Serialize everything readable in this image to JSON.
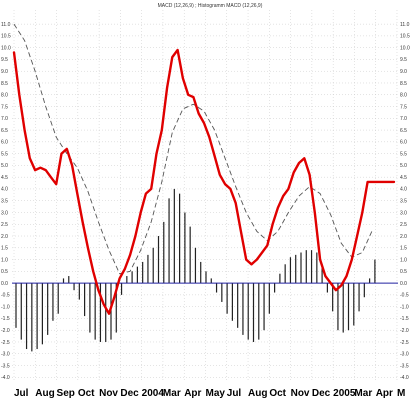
{
  "chart_data": {
    "type": "line",
    "title": "MACD (12,26,9) ; Histogramm MACD (12,26,9)",
    "ylim": [
      -4.2,
      11.6
    ],
    "yticks": [
      "-4.0",
      "-3.5",
      "-3.0",
      "-2.5",
      "-2.0",
      "-1.5",
      "-1.0",
      "-0.5",
      "0.0",
      "0.5",
      "1.0",
      "1.5",
      "2.0",
      "2.5",
      "3.0",
      "3.5",
      "4.0",
      "4.5",
      "5.0",
      "5.5",
      "6.0",
      "6.5",
      "7.0",
      "7.5",
      "8.0",
      "8.5",
      "9.0",
      "9.5",
      "10.0",
      "10.5",
      "11.0"
    ],
    "xticks": [
      "Jul",
      "Aug",
      "Sep",
      "Oct",
      "Nov",
      "Dec",
      "2004",
      "Mar",
      "Apr",
      "May",
      "Jul",
      "Aug",
      "Oct",
      "Nov",
      "Dec",
      "2005",
      "Mar",
      "Apr",
      "M"
    ],
    "grid": true,
    "colors": {
      "macd": "#e00000",
      "signal": "#555555",
      "histogram": "#222222",
      "zero_line": "#2020a0",
      "grid": "#c8c8c8"
    },
    "series": [
      {
        "style": "solid-red",
        "x": [
          0,
          5,
          10,
          15,
          20,
          25,
          30,
          35,
          40,
          45,
          50,
          55,
          60,
          65,
          70,
          75,
          80,
          85,
          90,
          95,
          100,
          105,
          110,
          115,
          120,
          125,
          130,
          135,
          140,
          145,
          150,
          155,
          160,
          165,
          170,
          175,
          180,
          185,
          190,
          195,
          200,
          205,
          210,
          215,
          220,
          225,
          230,
          235,
          240,
          245,
          250,
          255,
          260,
          265,
          270,
          275,
          280,
          285,
          290,
          295,
          300,
          305,
          310,
          315,
          320,
          325,
          330,
          335,
          340,
          345,
          350,
          355,
          360
        ],
        "values": [
          9.8,
          8.0,
          6.5,
          5.3,
          4.8,
          4.9,
          4.8,
          4.5,
          4.2,
          5.5,
          5.7,
          5.0,
          3.8,
          2.6,
          1.5,
          0.5,
          -0.3,
          -0.9,
          -1.3,
          -0.6,
          0.2,
          0.6,
          1.2,
          2.0,
          3.0,
          3.8,
          4.0,
          5.5,
          6.5,
          8.3,
          9.6,
          9.9,
          8.7,
          8.0,
          7.9,
          7.2,
          6.8,
          6.2,
          5.4,
          4.6,
          4.2,
          4.0,
          3.4,
          2.2,
          1.0,
          0.8,
          1.0,
          1.3,
          1.6,
          2.5,
          3.2,
          3.7,
          4.0,
          4.7,
          5.1,
          5.3,
          4.6,
          3.0,
          1.0,
          0.3,
          0.0,
          -0.3,
          -0.1,
          0.3,
          1.0,
          2.0,
          3.0,
          4.3,
          4.3,
          4.3,
          4.3,
          4.3,
          4.3
        ]
      },
      {
        "style": "dashed-black",
        "x": [
          0,
          10,
          20,
          30,
          40,
          50,
          60,
          70,
          80,
          90,
          100,
          110,
          120,
          130,
          140,
          150,
          160,
          170,
          180,
          190,
          200,
          210,
          220,
          230,
          240,
          250,
          260,
          270,
          280,
          290,
          300,
          310,
          320,
          330,
          340
        ],
        "values": [
          11.0,
          10.3,
          9.0,
          7.5,
          6.2,
          5.5,
          4.9,
          3.9,
          2.6,
          1.4,
          0.4,
          0.5,
          1.4,
          2.6,
          4.3,
          6.4,
          7.4,
          7.6,
          7.3,
          6.5,
          5.3,
          4.1,
          3.0,
          2.2,
          1.8,
          2.2,
          3.0,
          3.7,
          4.1,
          3.8,
          2.9,
          1.7,
          1.1,
          1.3,
          2.3
        ]
      }
    ],
    "histogram": {
      "x": [
        0,
        5,
        10,
        15,
        20,
        25,
        30,
        35,
        40,
        45,
        50,
        55,
        60,
        65,
        70,
        75,
        80,
        85,
        90,
        95,
        100,
        105,
        110,
        115,
        120,
        125,
        130,
        135,
        140,
        145,
        150,
        155,
        160,
        165,
        170,
        175,
        180,
        185,
        190,
        195,
        200,
        205,
        210,
        215,
        220,
        225,
        230,
        235,
        240,
        245,
        250,
        255,
        260,
        265,
        270,
        275,
        280,
        285,
        290,
        295,
        300,
        305,
        310,
        315,
        320,
        325,
        330,
        335,
        340
      ],
      "values": [
        -1.9,
        -2.4,
        -2.8,
        -2.9,
        -2.8,
        -2.6,
        -2.2,
        -1.6,
        -1.3,
        0.2,
        0.3,
        -0.3,
        -0.7,
        -1.4,
        -2.1,
        -2.4,
        -2.5,
        -2.5,
        -2.4,
        -2.1,
        -0.5,
        0.3,
        0.5,
        0.7,
        0.9,
        1.2,
        1.5,
        2.0,
        2.6,
        3.6,
        4.0,
        3.8,
        3.0,
        2.4,
        1.5,
        0.9,
        0.5,
        0.2,
        -0.4,
        -0.8,
        -1.3,
        -1.6,
        -1.9,
        -2.2,
        -2.4,
        -2.5,
        -2.4,
        -2.0,
        -1.3,
        -0.4,
        0.4,
        0.8,
        1.1,
        1.2,
        1.3,
        1.4,
        1.4,
        1.3,
        0.8,
        -0.4,
        -1.2,
        -2.0,
        -2.1,
        -2.0,
        -1.8,
        -1.2,
        -0.6,
        0.2,
        1.0
      ]
    }
  }
}
